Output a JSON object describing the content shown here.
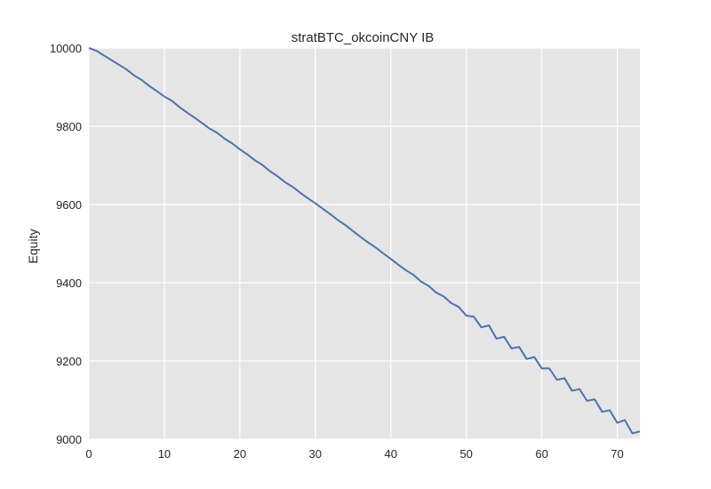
{
  "chart_data": {
    "type": "line",
    "title": "stratBTC_okcoinCNY IB",
    "xlabel": "",
    "ylabel": "Equity",
    "xlim": [
      0,
      73
    ],
    "ylim": [
      9000,
      10000
    ],
    "x_ticks": [
      0,
      10,
      20,
      30,
      40,
      50,
      60,
      70
    ],
    "y_ticks": [
      9000,
      9200,
      9400,
      9600,
      9800,
      10000
    ],
    "grid": true,
    "colors": {
      "background": "#e5e5e5",
      "grid": "#ffffff",
      "line": "#4c72b0"
    },
    "series": [
      {
        "x": [
          0,
          1,
          2,
          3,
          4,
          5,
          6,
          7,
          8,
          9,
          10,
          11,
          12,
          13,
          14,
          15,
          16,
          17,
          18,
          19,
          20,
          21,
          22,
          23,
          24,
          25,
          26,
          27,
          28,
          29,
          30,
          31,
          32,
          33,
          34,
          35,
          36,
          37,
          38,
          39,
          40,
          41,
          42,
          43,
          44,
          45,
          46,
          47,
          48,
          49,
          50,
          51,
          52,
          53,
          54,
          55,
          56,
          57,
          58,
          59,
          60,
          61,
          62,
          63,
          64,
          65,
          66,
          67,
          68,
          69,
          70,
          71,
          72,
          73
        ],
        "values": [
          10000,
          9993,
          9981,
          9969,
          9957,
          9945,
          9930,
          9918,
          9903,
          9890,
          9876,
          9865,
          9849,
          9835,
          9822,
          9808,
          9794,
          9783,
          9768,
          9756,
          9741,
          9728,
          9713,
          9701,
          9685,
          9672,
          9657,
          9645,
          9630,
          9616,
          9603,
          9589,
          9575,
          9560,
          9547,
          9532,
          9517,
          9503,
          9490,
          9475,
          9461,
          9446,
          9432,
          9420,
          9403,
          9392,
          9375,
          9365,
          9348,
          9338,
          9316,
          9313,
          9286,
          9291,
          9257,
          9262,
          9232,
          9236,
          9205,
          9210,
          9181,
          9181,
          9152,
          9156,
          9124,
          9128,
          9098,
          9102,
          9070,
          9074,
          9042,
          9049,
          9015,
          9020
        ]
      }
    ]
  }
}
